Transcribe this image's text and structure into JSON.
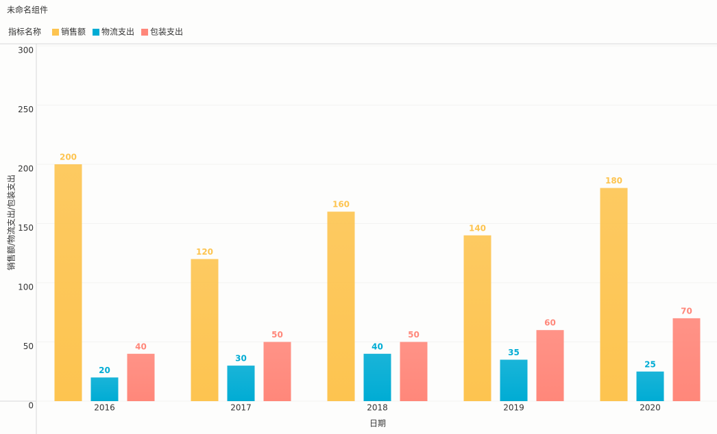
{
  "chart_data": {
    "type": "bar",
    "title": "未命名组件",
    "legend_title": "指标名称",
    "x_label": "日期",
    "y_label": "销售额/物流支出/包装支出",
    "categories": [
      "2016",
      "2017",
      "2018",
      "2019",
      "2020"
    ],
    "series": [
      {
        "name": "销售额",
        "color": "#fdc450",
        "values": [
          200,
          120,
          160,
          140,
          180
        ]
      },
      {
        "name": "物流支出",
        "color": "#00acd4",
        "values": [
          20,
          30,
          40,
          35,
          25
        ]
      },
      {
        "name": "包装支出",
        "color": "#ff877a",
        "values": [
          40,
          50,
          50,
          60,
          70
        ]
      }
    ],
    "ylim": [
      0,
      300
    ],
    "yticks": [
      0,
      50,
      100,
      150,
      200,
      250,
      300
    ],
    "grid": true,
    "legend": "top-left"
  }
}
